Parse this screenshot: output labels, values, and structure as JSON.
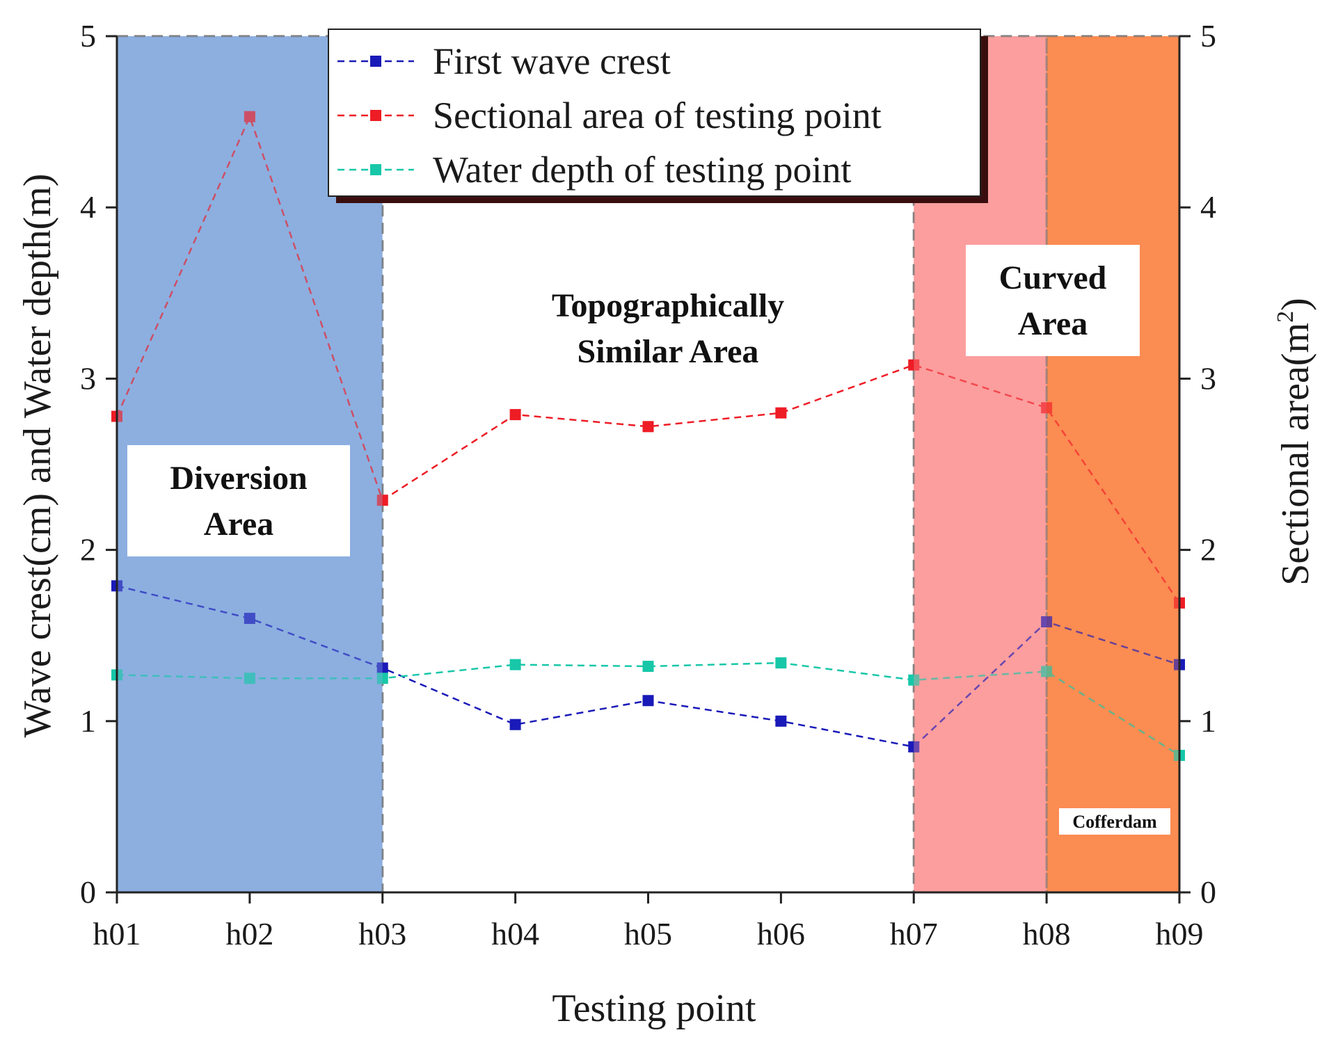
{
  "chart_data": {
    "type": "line",
    "xlabel": "Testing point",
    "ylabel_left": "Wave crest(cm) and Water depth(m)",
    "ylabel_right_prefix": "Sectional area(m",
    "ylabel_right_sup": "2",
    "ylabel_right_suffix": ")",
    "categories": [
      "h01",
      "h02",
      "h03",
      "h04",
      "h05",
      "h06",
      "h07",
      "h08",
      "h09"
    ],
    "ylim_left": [
      0,
      5
    ],
    "ylim_right": [
      0,
      5
    ],
    "yticks_left": [
      "0",
      "1",
      "2",
      "3",
      "4",
      "5"
    ],
    "yticks_right": [
      "0",
      "1",
      "2",
      "3",
      "4",
      "5"
    ],
    "series": [
      {
        "name": "First wave crest",
        "axis": "left",
        "color": "#1a1ab8",
        "values": [
          1.79,
          1.6,
          1.31,
          0.98,
          1.12,
          1.0,
          0.85,
          1.58,
          1.33
        ]
      },
      {
        "name": "Sectional area of testing point",
        "axis": "right",
        "color": "#ee1c25",
        "values": [
          2.78,
          4.53,
          2.29,
          2.79,
          2.72,
          2.8,
          3.08,
          2.83,
          1.69
        ]
      },
      {
        "name": "Water depth of testing point",
        "axis": "left",
        "color": "#17c7a8",
        "values": [
          1.27,
          1.25,
          1.25,
          1.33,
          1.32,
          1.34,
          1.24,
          1.29,
          0.8
        ]
      }
    ],
    "regions": [
      {
        "label_lines": [
          "Diversion",
          "Area"
        ],
        "from": "h01",
        "to": "h03",
        "color": "#8cb0e0",
        "label_box": true
      },
      {
        "label_lines": [
          "Topographically",
          "Similar Area"
        ],
        "from": "h03",
        "to": "h07",
        "color": "#ffffff",
        "label_box": false
      },
      {
        "label_lines": [
          "Curved",
          "Area"
        ],
        "from": "h07",
        "to": "h08",
        "color": "#fc9e9e",
        "label_box": true
      },
      {
        "label_lines": [
          "Cofferdam"
        ],
        "from": "h08",
        "to": "h09",
        "color": "#fb8c52",
        "label_box": true
      }
    ],
    "legend_position": "top-center"
  }
}
